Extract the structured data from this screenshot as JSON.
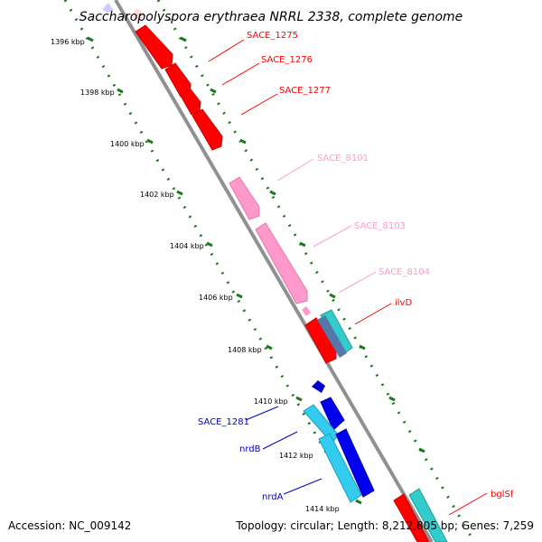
{
  "title": "Saccharopolyspora erythraea NRRL 2338, complete genome",
  "footer": {
    "accession": "Accession: NC_009142",
    "topology": "Topology: circular; Length: 8,212,805 bp; Genes: 7,259"
  },
  "ticks": [
    "1396 kbp",
    "1398 kbp",
    "1400 kbp",
    "1402 kbp",
    "1404 kbp",
    "1406 kbp",
    "1408 kbp",
    "1410 kbp",
    "1412 kbp",
    "1414 kbp"
  ],
  "genes": [
    {
      "name": "SACE_1275",
      "color": "#ff0000"
    },
    {
      "name": "SACE_1276",
      "color": "#ff0000"
    },
    {
      "name": "SACE_1277",
      "color": "#ff0000"
    },
    {
      "name": "SACE_8101",
      "color": "#ff99cc"
    },
    {
      "name": "SACE_8103",
      "color": "#ff99cc"
    },
    {
      "name": "SACE_8104",
      "color": "#ff99cc"
    },
    {
      "name": "ilvD",
      "color": "#ff0000"
    },
    {
      "name": "SACE_1281",
      "color": "#0000cc"
    },
    {
      "name": "nrdB",
      "color": "#0000cc"
    },
    {
      "name": "nrdA",
      "color": "#0000cc"
    },
    {
      "name": "bglSf",
      "color": "#ff0000"
    }
  ],
  "colors": {
    "backbone": "#909090",
    "tick_dots": "#1a7a1a",
    "red_feature": "#ff0000",
    "pink_feature": "#ff99cc",
    "blue_feature": "#0000cc",
    "cyan_feature": "#33cccc"
  }
}
